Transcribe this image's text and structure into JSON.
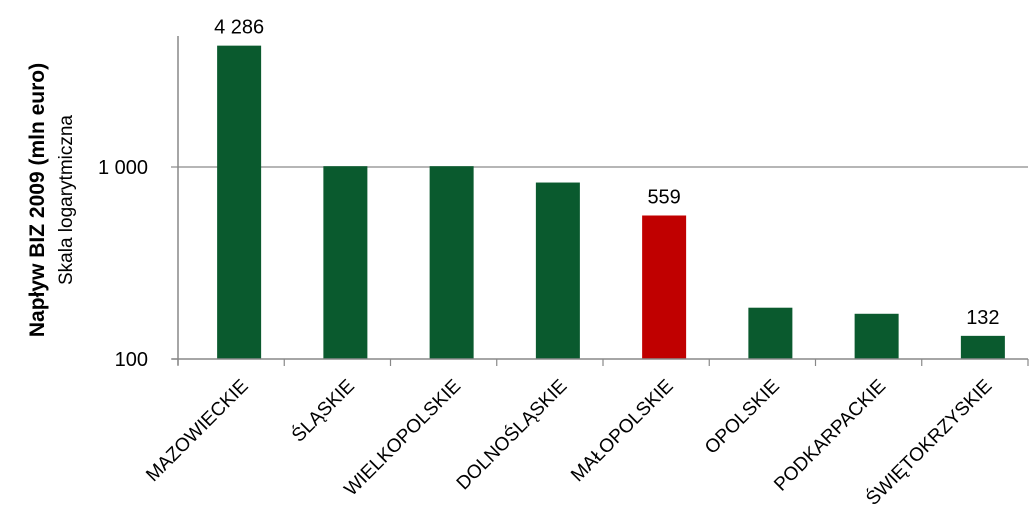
{
  "chart_data": {
    "type": "bar",
    "ylabel": "Napływ BIZ 2009 (mln euro)",
    "ylabel_sub": "Skala logarytmiczna",
    "yscale": "log",
    "ylim": [
      100,
      5000
    ],
    "yticks": [
      100,
      1000
    ],
    "ytick_labels": [
      "100",
      "1 000"
    ],
    "grid": true,
    "categories": [
      "MAZOWIECKIE",
      "ŚLĄSKIE",
      "WIELKOPOLSKIE",
      "DOLNOŚLĄSKIE",
      "MAŁOPOLSKIE",
      "OPOLSKIE",
      "PODKARPACKIE",
      "ŚWIĘTOKRZYSKIE"
    ],
    "values": [
      4286,
      1010,
      1010,
      830,
      559,
      185,
      172,
      132
    ],
    "colors": [
      "#0a5a2e",
      "#0a5a2e",
      "#0a5a2e",
      "#0a5a2e",
      "#c00000",
      "#0a5a2e",
      "#0a5a2e",
      "#0a5a2e"
    ],
    "data_labels": [
      {
        "index": 0,
        "text": "4 286"
      },
      {
        "index": 4,
        "text": "559"
      },
      {
        "index": 7,
        "text": "132"
      }
    ]
  }
}
